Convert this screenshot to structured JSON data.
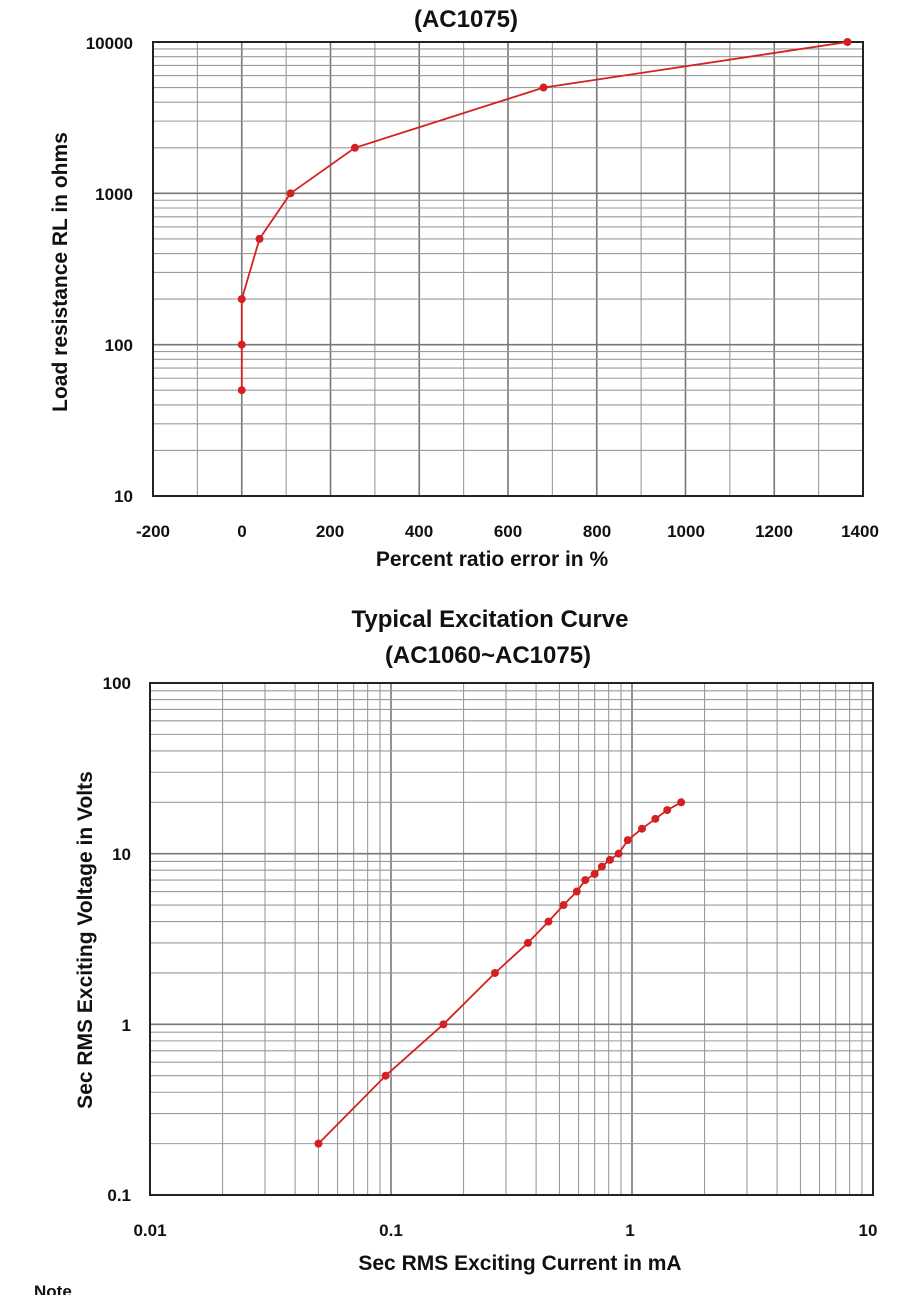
{
  "colors": {
    "series": "#d42020",
    "grid": "#9a9a9a",
    "frame": "#222222",
    "text": "#111111"
  },
  "chart_data": [
    {
      "type": "line",
      "title": "(AC1075)",
      "xlabel": "Percent ratio error in %",
      "ylabel": "Load resistance RL in ohms",
      "xscale": "linear",
      "yscale": "log",
      "xlim": [
        -200,
        1400
      ],
      "ylim": [
        10,
        10000
      ],
      "xticks": [
        "-200",
        "0",
        "200",
        "400",
        "600",
        "800",
        "1000",
        "1200",
        "1400"
      ],
      "yticks": [
        "10",
        "100",
        "1000",
        "10000"
      ],
      "grid": true,
      "series": [
        {
          "name": "AC1075",
          "x": [
            0,
            0,
            0,
            40,
            110,
            255,
            680,
            1365
          ],
          "y": [
            50,
            100,
            200,
            500,
            1000,
            2000,
            5000,
            10000
          ]
        }
      ]
    },
    {
      "type": "line",
      "title": "Typical Excitation Curve",
      "subtitle": "(AC1060~AC1075)",
      "xlabel": "Sec RMS Exciting Current in mA",
      "ylabel": "Sec RMS Exciting Voltage in Volts",
      "xscale": "log",
      "yscale": "log",
      "xlim": [
        0.01,
        10
      ],
      "ylim": [
        0.1,
        100
      ],
      "xticks": [
        "0.01",
        "0.1",
        "1",
        "10"
      ],
      "yticks": [
        "0.1",
        "1",
        "10",
        "100"
      ],
      "grid": true,
      "series": [
        {
          "name": "AC1060~AC1075",
          "x": [
            0.05,
            0.095,
            0.165,
            0.27,
            0.37,
            0.45,
            0.52,
            0.59,
            0.64,
            0.7,
            0.75,
            0.81,
            0.88,
            0.96,
            1.1,
            1.25,
            1.4,
            1.6
          ],
          "y": [
            0.2,
            0.5,
            1,
            2,
            3,
            4,
            5,
            6,
            7,
            7.6,
            8.4,
            9.2,
            10,
            12,
            14,
            16,
            18,
            20
          ]
        }
      ]
    }
  ],
  "footer": {
    "stub_text": "Note"
  }
}
